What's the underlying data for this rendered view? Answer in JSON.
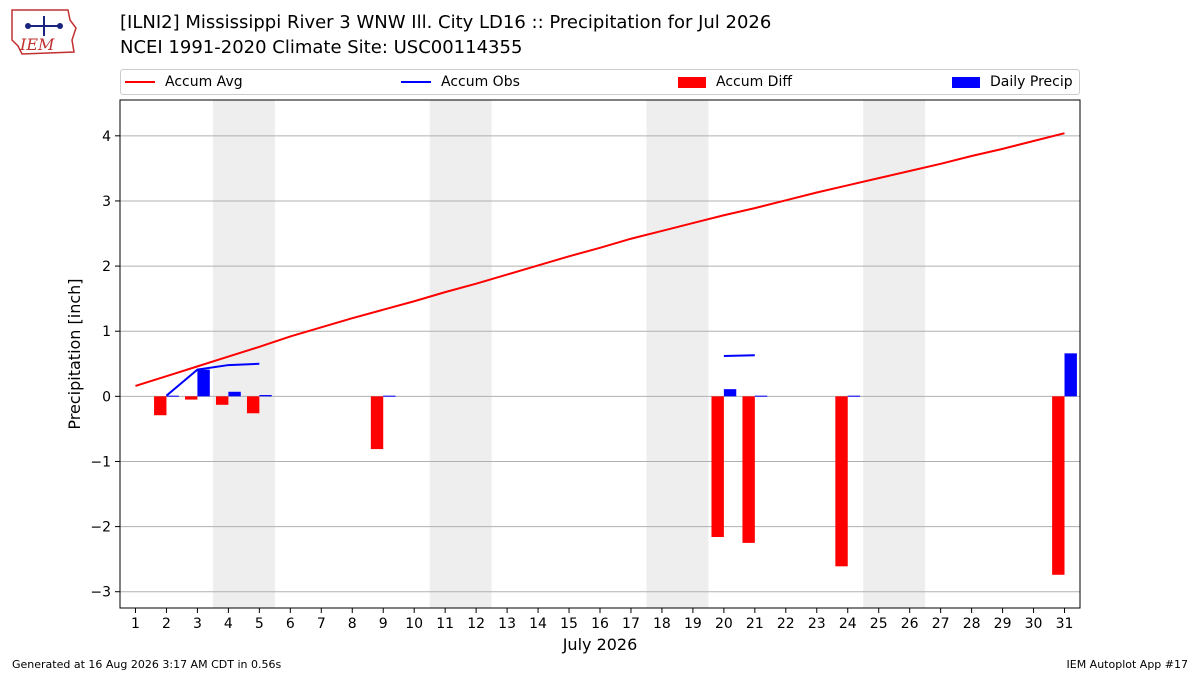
{
  "header": {
    "title_line1": "[ILNI2] Mississippi River 3 WNW Ill. City LD16 :: Precipitation for Jul 2026",
    "title_line2": "NCEI 1991-2020 Climate Site: USC00114355",
    "logo_text": "IEM"
  },
  "legend": {
    "placement": "top, above plot",
    "items": [
      {
        "label": "Accum Avg",
        "kind": "line",
        "color": "#ff0000"
      },
      {
        "label": "Accum Obs",
        "kind": "line",
        "color": "#0000ff"
      },
      {
        "label": "Accum Diff",
        "kind": "bar",
        "color": "#ff0000"
      },
      {
        "label": "Daily Precip",
        "kind": "bar",
        "color": "#0000ff"
      }
    ]
  },
  "chart_data": {
    "type": "bar",
    "title": "[ILNI2] Mississippi River 3 WNW Ill. City LD16 :: Precipitation for Jul 2026",
    "subtitle": "NCEI 1991-2020 Climate Site: USC00114355",
    "xlabel": "July 2026",
    "ylabel": "Precipitation [inch]",
    "xlim": [
      0.5,
      31.5
    ],
    "ylim": [
      -3.25,
      4.55
    ],
    "yticks": [
      -3,
      -2,
      -1,
      0,
      1,
      2,
      3,
      4
    ],
    "ytick_labels": [
      "−3",
      "−2",
      "−1",
      "0",
      "1",
      "2",
      "3",
      "4"
    ],
    "x_ticks": [
      1,
      2,
      3,
      4,
      5,
      6,
      7,
      8,
      9,
      10,
      11,
      12,
      13,
      14,
      15,
      16,
      17,
      18,
      19,
      20,
      21,
      22,
      23,
      24,
      25,
      26,
      27,
      28,
      29,
      30,
      31
    ],
    "grid": "horizontal",
    "weekend_shading": [
      [
        3.5,
        5.5
      ],
      [
        10.5,
        12.5
      ],
      [
        17.5,
        19.5
      ],
      [
        24.5,
        26.5
      ]
    ],
    "series": [
      {
        "name": "Accum Avg",
        "type": "line",
        "color": "#ff0000",
        "x": [
          1,
          2,
          3,
          4,
          5,
          6,
          7,
          8,
          9,
          10,
          11,
          12,
          13,
          14,
          15,
          16,
          17,
          18,
          19,
          20,
          21,
          22,
          23,
          24,
          25,
          26,
          27,
          28,
          29,
          30,
          31
        ],
        "values": [
          0.16,
          0.31,
          0.46,
          0.61,
          0.76,
          0.92,
          1.06,
          1.2,
          1.33,
          1.46,
          1.6,
          1.73,
          1.87,
          2.01,
          2.15,
          2.28,
          2.42,
          2.54,
          2.66,
          2.78,
          2.89,
          3.01,
          3.13,
          3.24,
          3.35,
          3.46,
          3.57,
          3.69,
          3.8,
          3.92,
          4.04
        ]
      },
      {
        "name": "Accum Obs",
        "type": "line",
        "color": "#0000ff",
        "segments": [
          {
            "x": [
              2,
              3,
              4,
              5
            ],
            "values": [
              0.01,
              0.41,
              0.48,
              0.5
            ]
          },
          {
            "x": [
              20,
              21
            ],
            "values": [
              0.62,
              0.63
            ]
          }
        ]
      },
      {
        "name": "Accum Diff",
        "type": "bar",
        "color": "#ff0000",
        "x": [
          2,
          3,
          4,
          5,
          9,
          20,
          21,
          24,
          31
        ],
        "values": [
          -0.29,
          -0.05,
          -0.13,
          -0.26,
          -0.81,
          -2.16,
          -2.25,
          -2.61,
          -2.74
        ]
      },
      {
        "name": "Daily Precip",
        "type": "bar",
        "color": "#0000ff",
        "x": [
          2,
          3,
          4,
          5,
          9,
          20,
          21,
          24,
          31
        ],
        "values": [
          0.01,
          0.41,
          0.07,
          0.02,
          0.01,
          0.11,
          0.01,
          0.01,
          0.66
        ]
      }
    ]
  },
  "footer": {
    "left": "Generated at 16 Aug 2026 3:17 AM CDT in 0.56s",
    "right": "IEM Autoplot App #17"
  }
}
